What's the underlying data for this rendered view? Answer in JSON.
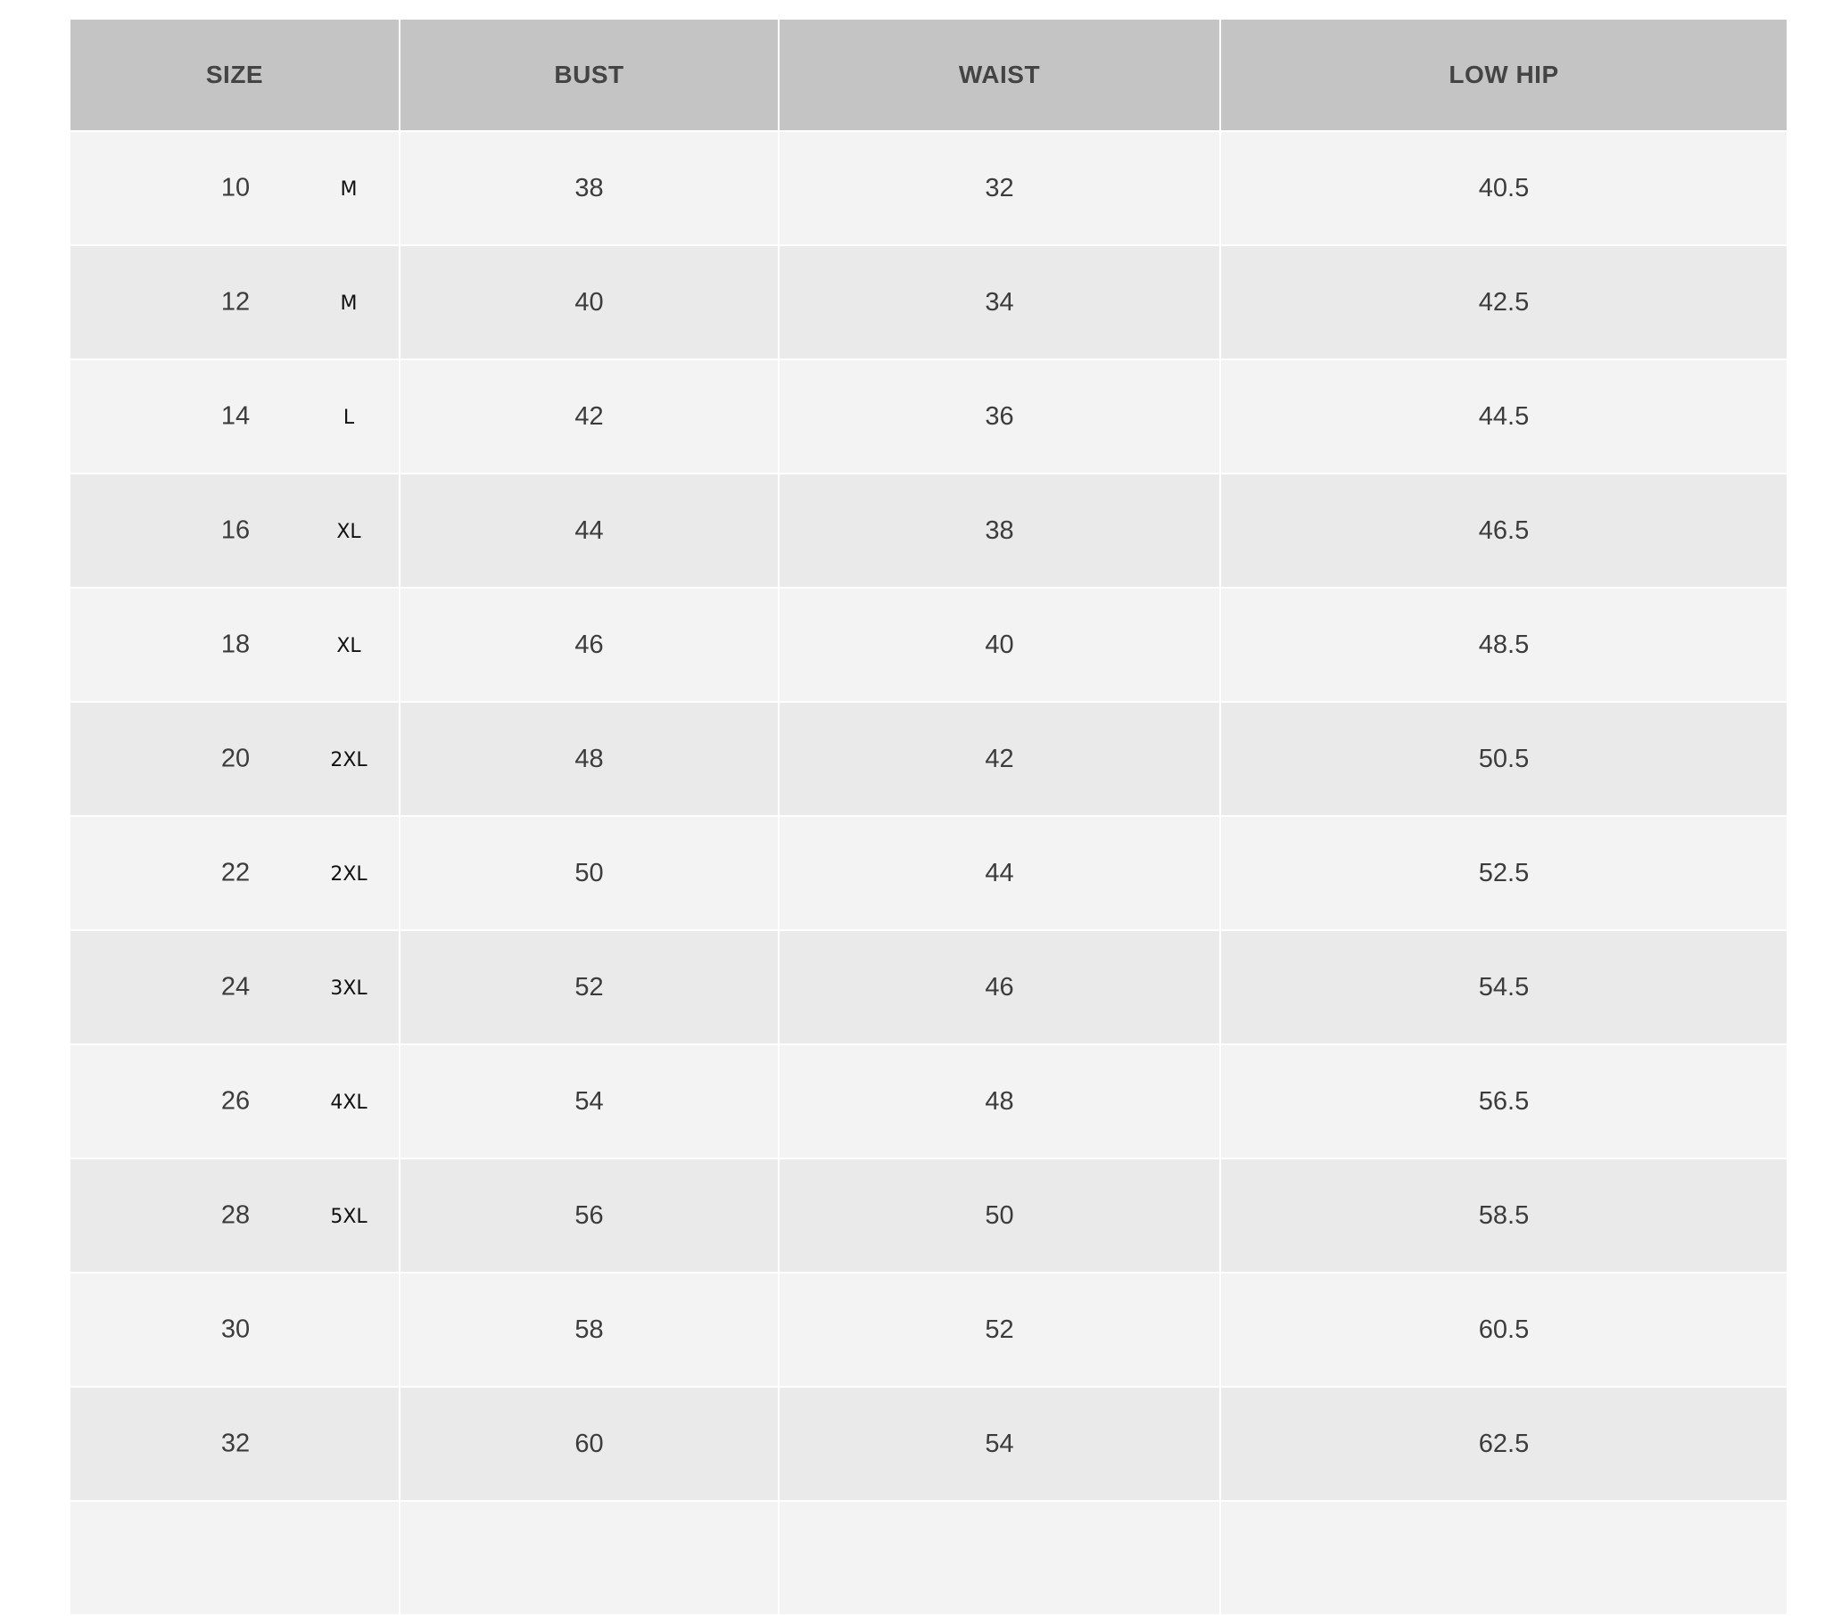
{
  "headers": [
    "SIZE",
    "BUST",
    "WAIST",
    "LOW HIP"
  ],
  "rows": [
    {
      "size": "10",
      "alpha": "M",
      "bust": "38",
      "waist": "32",
      "low_hip": "40.5"
    },
    {
      "size": "12",
      "alpha": "M",
      "bust": "40",
      "waist": "34",
      "low_hip": "42.5"
    },
    {
      "size": "14",
      "alpha": "L",
      "bust": "42",
      "waist": "36",
      "low_hip": "44.5"
    },
    {
      "size": "16",
      "alpha": "XL",
      "bust": "44",
      "waist": "38",
      "low_hip": "46.5"
    },
    {
      "size": "18",
      "alpha": "XL",
      "bust": "46",
      "waist": "40",
      "low_hip": "48.5"
    },
    {
      "size": "20",
      "alpha": "2XL",
      "bust": "48",
      "waist": "42",
      "low_hip": "50.5"
    },
    {
      "size": "22",
      "alpha": "2XL",
      "bust": "50",
      "waist": "44",
      "low_hip": "52.5"
    },
    {
      "size": "24",
      "alpha": "3XL",
      "bust": "52",
      "waist": "46",
      "low_hip": "54.5"
    },
    {
      "size": "26",
      "alpha": "4XL",
      "bust": "54",
      "waist": "48",
      "low_hip": "56.5"
    },
    {
      "size": "28",
      "alpha": "5XL",
      "bust": "56",
      "waist": "50",
      "low_hip": "58.5"
    },
    {
      "size": "30",
      "alpha": "",
      "bust": "58",
      "waist": "52",
      "low_hip": "60.5"
    },
    {
      "size": "32",
      "alpha": "",
      "bust": "60",
      "waist": "54",
      "low_hip": "62.5"
    }
  ],
  "colors": {
    "header_bg": "#c4c4c4",
    "row_odd": "#f3f3f3",
    "row_even": "#eaeaea"
  }
}
